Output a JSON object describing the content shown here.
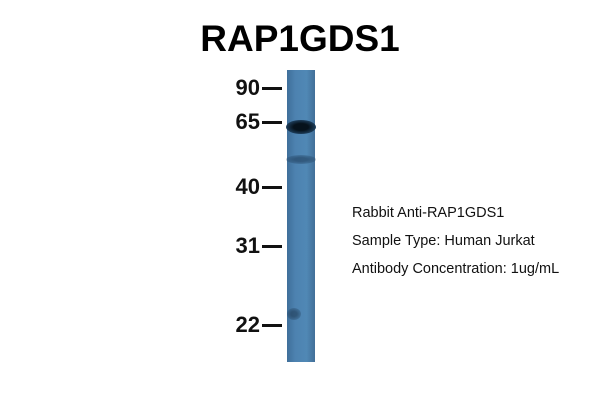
{
  "title": "RAP1GDS1",
  "markers": [
    "90",
    "65",
    "40",
    "31",
    "22"
  ],
  "info": {
    "antibody": "Rabbit Anti-RAP1GDS1",
    "sample": "Sample Type: Human Jurkat",
    "concentration": "Antibody Concentration: 1ug/mL"
  },
  "colors": {
    "lane": "#4d82b0",
    "band": "#0b1e2e"
  }
}
